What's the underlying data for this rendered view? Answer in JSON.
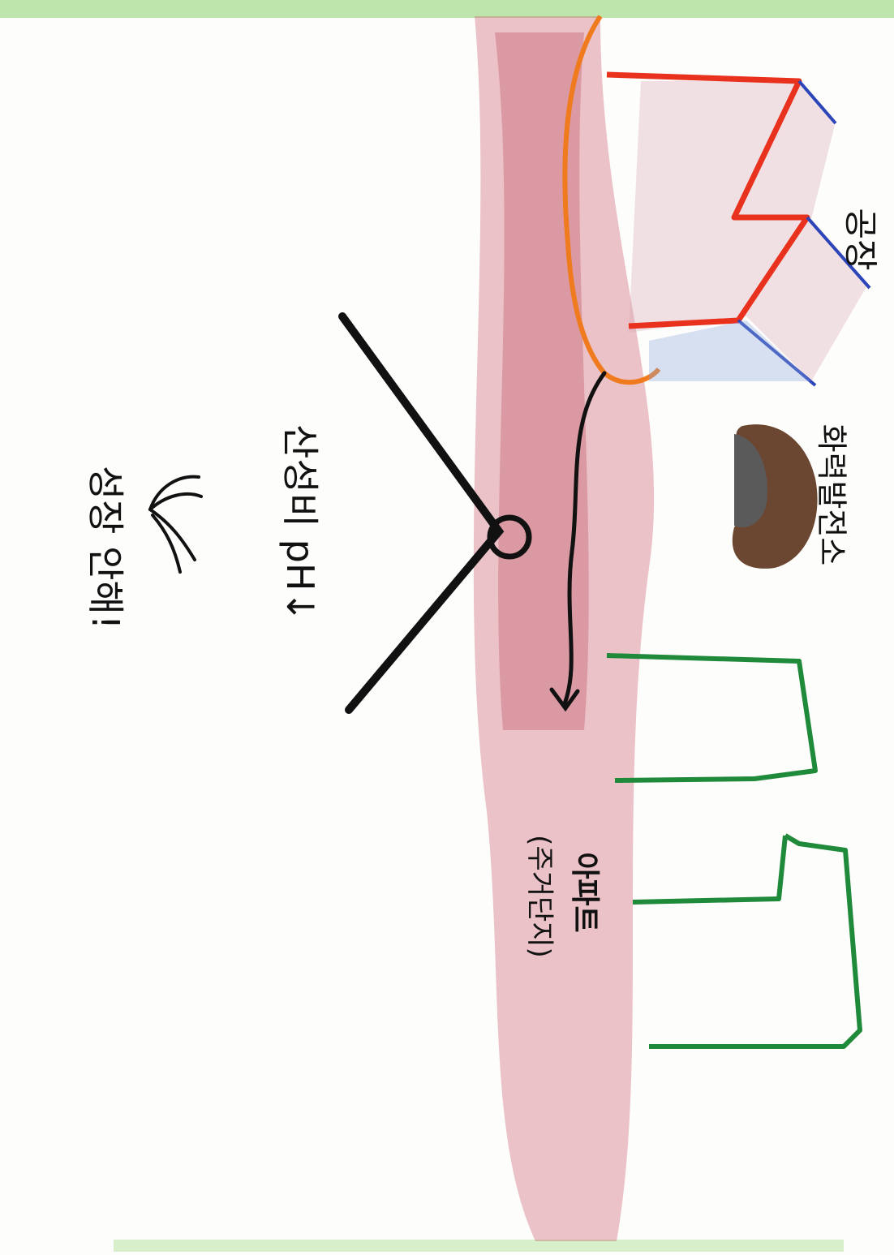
{
  "labels": {
    "factory": "공장",
    "power_plant": "화력발전소",
    "apartment": "아파트",
    "apartment_sub": "(주거단지)",
    "acid_rain": "산성비 pH↓",
    "conclusion": "성장 안해!"
  },
  "colors": {
    "smog": "#c8485a",
    "factory_outline": "#e8321e",
    "factory_base": "#2c45b8",
    "power_plant": "#6b4630",
    "apartment": "#1f8a3a",
    "ink": "#111111",
    "tape": "#9fd88a"
  }
}
